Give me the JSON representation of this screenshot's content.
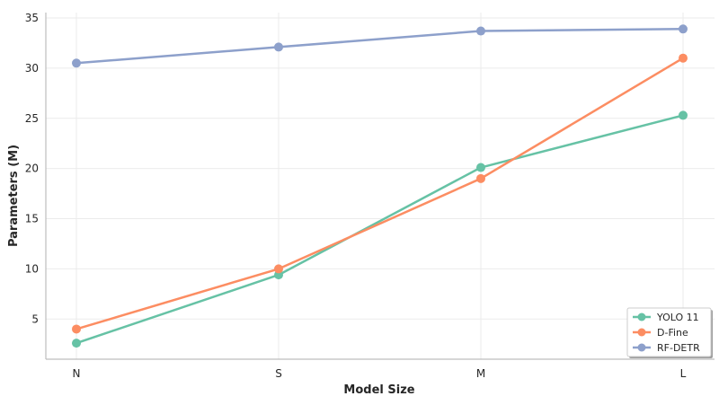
{
  "chart_data": {
    "type": "line",
    "categories": [
      "N",
      "S",
      "M",
      "L"
    ],
    "series": [
      {
        "name": "YOLO 11",
        "color": "#66c2a5",
        "values": [
          2.6,
          9.4,
          20.1,
          25.3
        ]
      },
      {
        "name": "D-Fine",
        "color": "#fc8d62",
        "values": [
          4.0,
          10.0,
          19.0,
          31.0
        ]
      },
      {
        "name": "RF-DETR",
        "color": "#8da0cb",
        "values": [
          30.5,
          32.1,
          33.7,
          33.9
        ]
      }
    ],
    "title": "",
    "xlabel": "Model Size",
    "ylabel": "Parameters (M)",
    "ylim": [
      1,
      35
    ],
    "yticks": [
      5,
      10,
      15,
      20,
      25,
      30,
      35
    ],
    "grid": true,
    "legend_position": "bottom-right",
    "markers": "circle"
  }
}
